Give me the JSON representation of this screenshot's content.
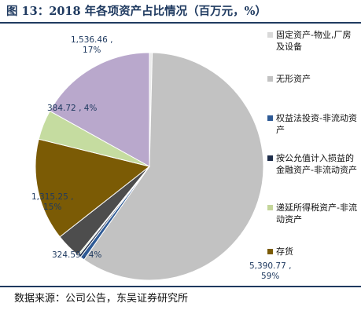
{
  "title": "图 13：2018 年各项资产占比情况（百万元，%）",
  "source": "数据来源：公司公告，东吴证券研究所",
  "chart_data": {
    "type": "pie",
    "title": "图 13：2018 年各项资产占比情况（百万元，%）",
    "legend_position": "right",
    "slices": [
      {
        "name": "固定资产-物业,厂房及设备",
        "value": 36.0,
        "color": "#ebebeb"
      },
      {
        "name": "无形资产",
        "value": 5390.77,
        "color": "#c2c2c2",
        "label_value": "5,390.77 ,",
        "label_pct": "59%"
      },
      {
        "name": "权益法投资-非流动资产",
        "value": 55.0,
        "color": "#2e5a95"
      },
      {
        "name": "按公允值计入损益的金融资产-非流动资产",
        "value": 28.0,
        "color": "#1e2d4a"
      },
      {
        "name": "递延所得税资产-非流动资产",
        "value": 16.0,
        "color": "#c4d69a"
      },
      {
        "name": "存货",
        "value": 324.59,
        "color": "#4d4d4d",
        "label_value": "324.59 , 4%",
        "label_pct": ""
      },
      {
        "name": "",
        "value": 1315.25,
        "color": "#7b5b05",
        "label_value": "1,315.25 ,",
        "label_pct": "15%"
      },
      {
        "name": "",
        "value": 384.72,
        "color": "#c5dca0",
        "label_value": "384.72 , 4%",
        "label_pct": ""
      },
      {
        "name": "",
        "value": 1536.46,
        "color": "#b9a8cc",
        "label_value": "1,536.46 ,",
        "label_pct": "17%"
      }
    ],
    "legend": [
      {
        "text": "固定资产-物业,厂房及设备",
        "color": "#d9d9d9"
      },
      {
        "text": "无形资产",
        "color": "#c2c2c2"
      },
      {
        "text": "权益法投资-非流动资产",
        "color": "#2e5a95"
      },
      {
        "text": "按公允值计入损益的金融资产-非流动资产",
        "color": "#1e2d4a"
      },
      {
        "text": "递延所得税资产-非流动资产",
        "color": "#c4d69a"
      },
      {
        "text": "存货",
        "color": "#7b5b05"
      }
    ]
  }
}
